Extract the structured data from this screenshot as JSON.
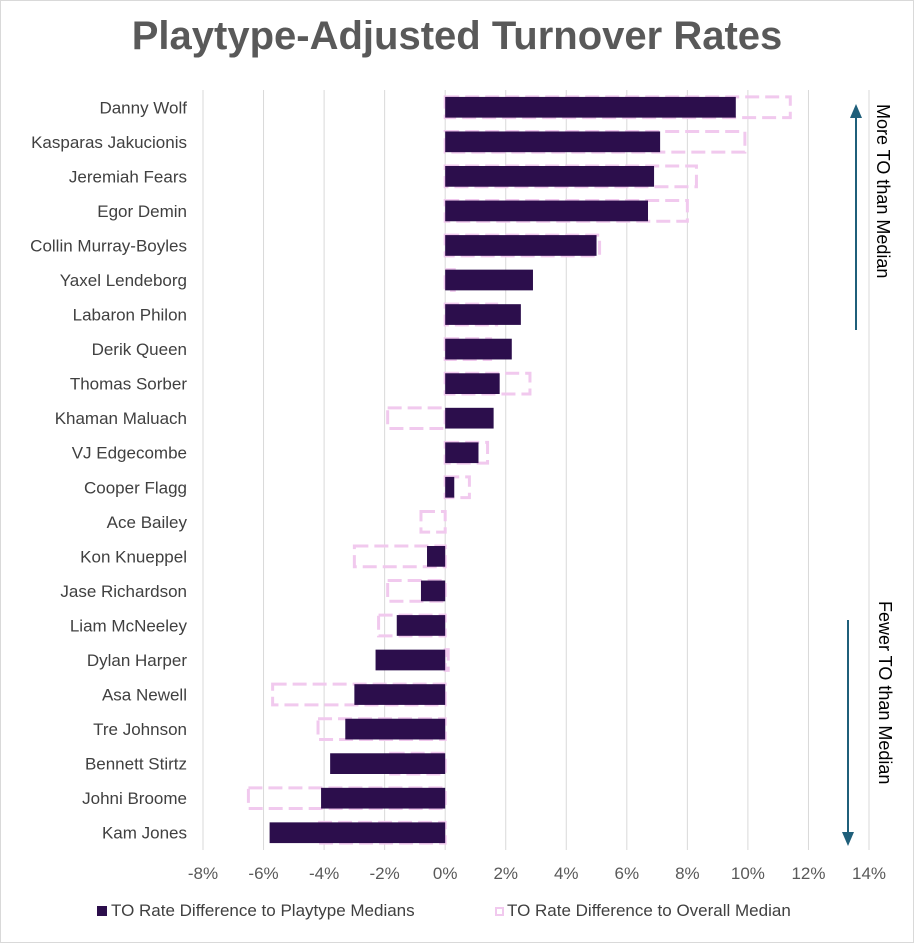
{
  "chart_data": {
    "type": "bar",
    "orientation": "horizontal",
    "title": "Playtype-Adjusted Turnover Rates",
    "categories": [
      "Danny Wolf",
      "Kasparas Jakucionis",
      "Jeremiah Fears",
      "Egor Demin",
      "Collin Murray-Boyles",
      "Yaxel Lendeborg",
      "Labaron Philon",
      "Derik Queen",
      "Thomas Sorber",
      "Khaman Maluach",
      "VJ Edgecombe",
      "Cooper Flagg",
      "Ace Bailey",
      "Kon Knueppel",
      "Jase Richardson",
      "Liam McNeeley",
      "Dylan Harper",
      "Asa Newell",
      "Tre Johnson",
      "Bennett Stirtz",
      "Johni Broome",
      "Kam Jones"
    ],
    "series": [
      {
        "name": "TO Rate Difference to Playtype Medians",
        "color": "#2c0e4c",
        "style": "solid",
        "values": [
          9.6,
          7.1,
          6.9,
          6.7,
          5.0,
          2.9,
          2.5,
          2.2,
          1.8,
          1.6,
          1.1,
          0.3,
          0.0,
          -0.6,
          -0.8,
          -1.6,
          -2.3,
          -3.0,
          -3.3,
          -3.8,
          -4.1,
          -5.8
        ]
      },
      {
        "name": "TO Rate Difference to Overall Median",
        "color": "#f1c9ee",
        "style": "dashed",
        "values": [
          11.4,
          9.9,
          8.3,
          8.0,
          5.1,
          0.3,
          1.7,
          1.5,
          2.8,
          -1.9,
          1.4,
          0.8,
          -0.8,
          -3.0,
          -1.9,
          -2.2,
          0.1,
          -5.7,
          -4.2,
          -1.8,
          -6.5,
          -4.2
        ]
      }
    ],
    "xlabel": "",
    "ylabel": "",
    "xlim": [
      -8,
      14
    ],
    "xticks": [
      -8,
      -6,
      -4,
      -2,
      0,
      2,
      4,
      6,
      8,
      10,
      12,
      14
    ],
    "xtick_labels": [
      "-8%",
      "-6%",
      "-4%",
      "-2%",
      "0%",
      "2%",
      "4%",
      "6%",
      "8%",
      "10%",
      "12%",
      "14%"
    ],
    "grid": true,
    "legend": "bottom",
    "annotations": [
      {
        "text": "More TO than Median",
        "direction": "up",
        "color": "#1f5f7a"
      },
      {
        "text": "Fewer TO than Median",
        "direction": "down",
        "color": "#1f5f7a"
      }
    ]
  }
}
